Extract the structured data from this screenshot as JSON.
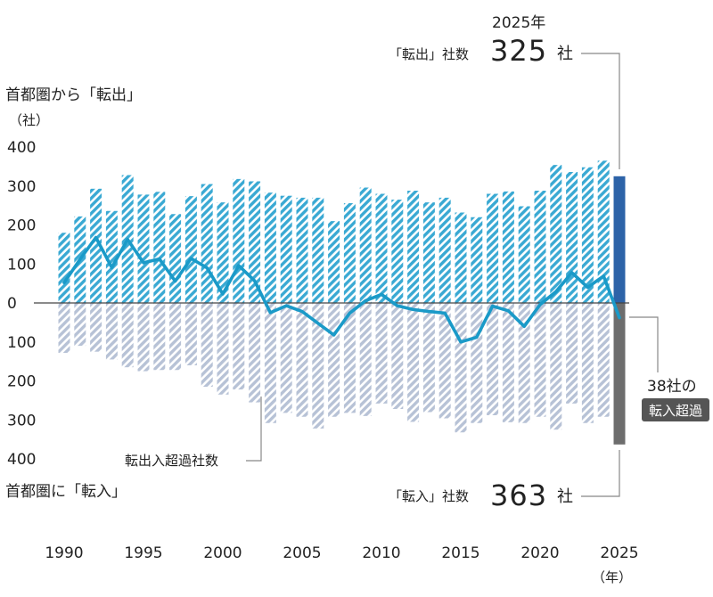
{
  "chart_data": {
    "type": "bar",
    "title_out": "首都圏から「転出」",
    "title_in": "首都圏に「転入」",
    "unit_label": "（社）",
    "x_unit_label": "（年）",
    "y_tick_labels": [
      "400",
      "300",
      "200",
      "100",
      "0",
      "100",
      "200",
      "300",
      "400"
    ],
    "ylim": [
      -400,
      400
    ],
    "x_tick_labels": [
      "1990",
      "1995",
      "2000",
      "2005",
      "2010",
      "2015",
      "2020",
      "2025"
    ],
    "years": [
      1990,
      1991,
      1992,
      1993,
      1994,
      1995,
      1996,
      1997,
      1998,
      1999,
      2000,
      2001,
      2002,
      2003,
      2004,
      2005,
      2006,
      2007,
      2008,
      2009,
      2010,
      2011,
      2012,
      2013,
      2014,
      2015,
      2016,
      2017,
      2018,
      2019,
      2020,
      2021,
      2022,
      2023,
      2024,
      2025
    ],
    "series": [
      {
        "name": "転出",
        "values": [
          180,
          222,
          293,
          236,
          328,
          278,
          285,
          228,
          274,
          305,
          258,
          318,
          312,
          283,
          275,
          270,
          270,
          210,
          256,
          296,
          280,
          265,
          288,
          258,
          270,
          232,
          220,
          280,
          286,
          248,
          288,
          354,
          336,
          348,
          365,
          325
        ]
      },
      {
        "name": "転入",
        "values": [
          -128,
          -110,
          -125,
          -145,
          -165,
          -175,
          -172,
          -172,
          -160,
          -215,
          -235,
          -222,
          -255,
          -308,
          -282,
          -292,
          -322,
          -292,
          -282,
          -290,
          -258,
          -272,
          -305,
          -280,
          -296,
          -332,
          -308,
          -288,
          -306,
          -308,
          -292,
          -325,
          -258,
          -308,
          -292,
          -363
        ]
      },
      {
        "name": "転出入超過社数",
        "values": [
          52,
          112,
          168,
          91,
          163,
          103,
          113,
          56,
          114,
          90,
          23,
          96,
          57,
          -25,
          -7,
          -22,
          -52,
          -82,
          -26,
          6,
          22,
          -7,
          -17,
          -22,
          -26,
          -100,
          -88,
          -8,
          -20,
          -60,
          -4,
          29,
          78,
          40,
          69,
          -38
        ]
      }
    ],
    "annotations": {
      "year_2025": "2025年",
      "out_label": "「転出」社数",
      "out_value": "325",
      "in_label": "「転入」社数",
      "in_value": "363",
      "unit_sha": "社",
      "net_label": "転出入超過社数",
      "net_value_label": "38社の",
      "net_badge": "転入超過"
    },
    "colors": {
      "out_stripe": "#3aa9d3",
      "in_stripe": "#b7c2d6",
      "line": "#1a9ac8",
      "out_2025": "#2d63a8",
      "in_2025": "#6d6d6d",
      "badge_bg": "#555555",
      "leader": "#888888"
    }
  }
}
